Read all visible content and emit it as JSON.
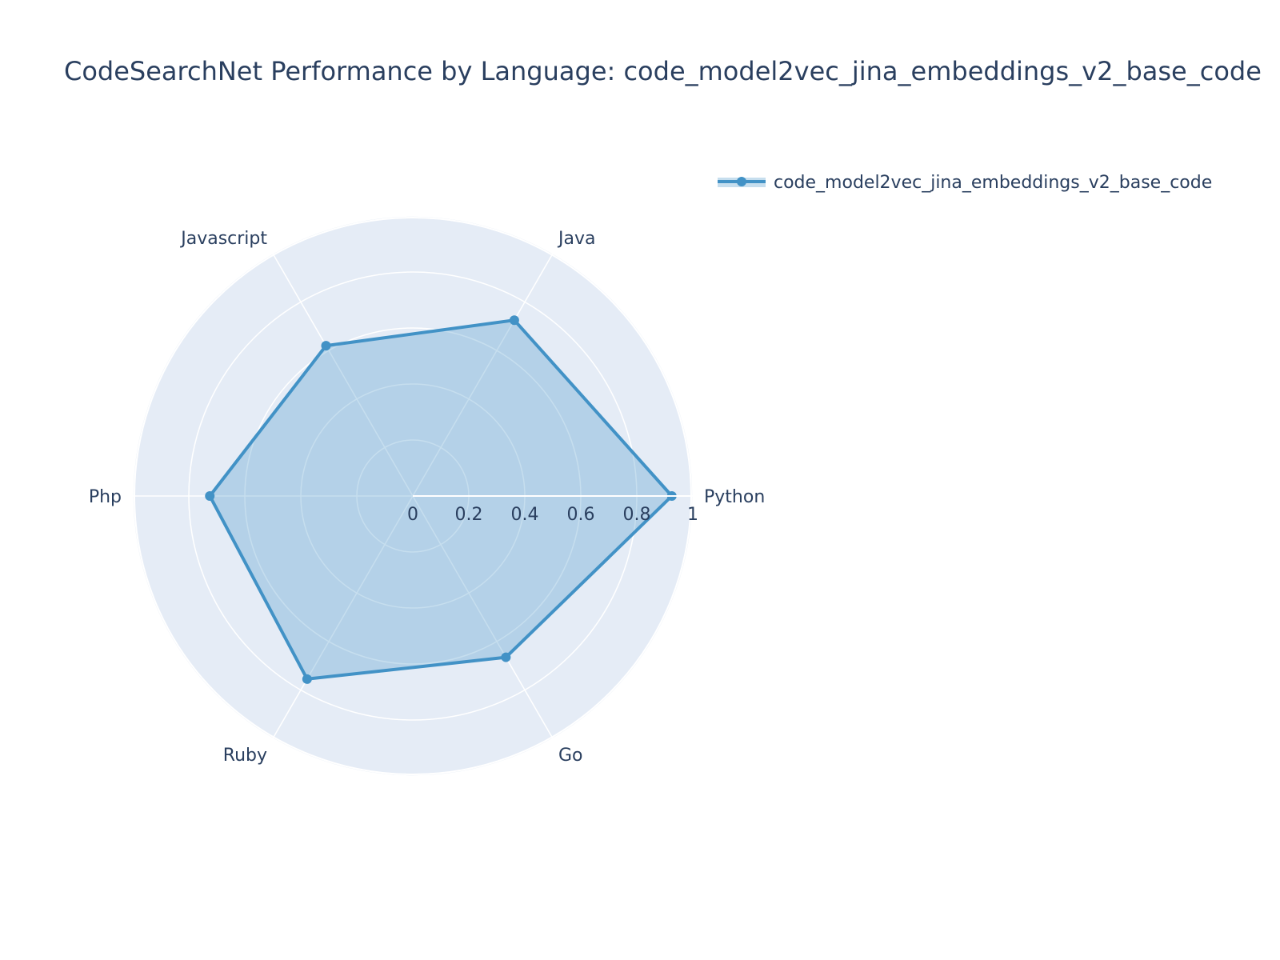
{
  "chart_data": {
    "type": "radar",
    "title": "CodeSearchNet Performance by Language: code_model2vec_jina_embeddings_v2_base_code",
    "categories": [
      "Python",
      "Java",
      "Javascript",
      "Php",
      "Ruby",
      "Go"
    ],
    "series": [
      {
        "name": "code_model2vec_jina_embeddings_v2_base_code",
        "values": [
          0.925,
          0.725,
          0.62,
          0.725,
          0.755,
          0.665
        ]
      }
    ],
    "radial_ticks": [
      "0",
      "0.2",
      "0.4",
      "0.6",
      "0.8",
      "1"
    ],
    "radial_range": [
      0,
      1
    ],
    "legend_position": "top-right",
    "colors": {
      "line": "#4292c6",
      "fill": "rgba(66,146,198,0.3)",
      "polar_bg": "#e5ecf6",
      "grid": "#ffffff",
      "text": "#2a3f5f"
    }
  }
}
